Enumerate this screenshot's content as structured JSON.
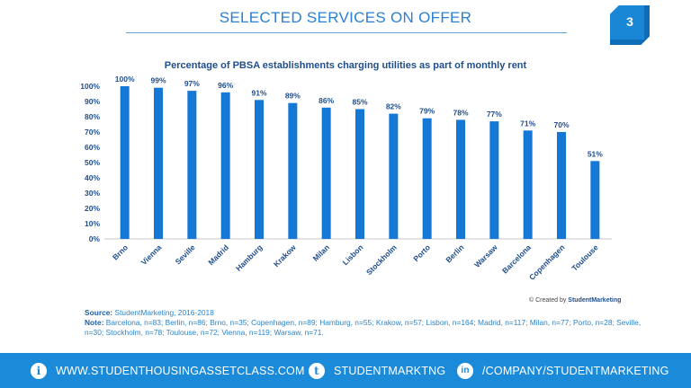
{
  "header": {
    "title": "SELECTED SERVICES ON OFFER",
    "page_number": "3"
  },
  "chart_data": {
    "type": "bar",
    "title": "Percentage of PBSA establishments charging utilities as part of monthly rent",
    "categories": [
      "Brno",
      "Vienna",
      "Seville",
      "Madrid",
      "Hamburg",
      "Krakow",
      "Milan",
      "Lisbon",
      "Stockholm",
      "Porto",
      "Berlin",
      "Warsaw",
      "Barcelona",
      "Copenhagen",
      "Toulouse"
    ],
    "values": [
      100,
      99,
      97,
      96,
      91,
      89,
      86,
      85,
      82,
      79,
      78,
      77,
      71,
      70,
      51
    ],
    "value_labels": [
      "100%",
      "99%",
      "97%",
      "96%",
      "91%",
      "89%",
      "86%",
      "85%",
      "82%",
      "79%",
      "78%",
      "77%",
      "71%",
      "70%",
      "51%"
    ],
    "ylim": [
      0,
      100
    ],
    "yticks": [
      "0%",
      "10%",
      "20%",
      "30%",
      "40%",
      "50%",
      "60%",
      "70%",
      "80%",
      "90%",
      "100%"
    ],
    "bar_color": "#1577d6",
    "xlabel": "",
    "ylabel": ""
  },
  "credit": {
    "prefix": "© Created by",
    "brand": "StudentMarketing"
  },
  "source": {
    "source_label": "Source:",
    "source_text": "StudentMarketing, 2016-2018",
    "note_label": "Note:",
    "note_text": "Barcelona, n=83; Berlin, n=86; Brno, n=35; Copenhagen, n=89; Hamburg, n=55; Krakow, n=57; Lisbon, n=164; Madrid, n=117; Milan, n=77; Porto, n=28; Seville, n=30; Stockholm, n=78; Toulouse, n=72; Vienna, n=119; Warsaw, n=71."
  },
  "footer": {
    "website": "WWW.STUDENTHOUSINGASSETCLASS.COM",
    "twitter": "STUDENTMARKTNG",
    "linkedin": "/COMPANY/STUDENTMARKETING"
  }
}
